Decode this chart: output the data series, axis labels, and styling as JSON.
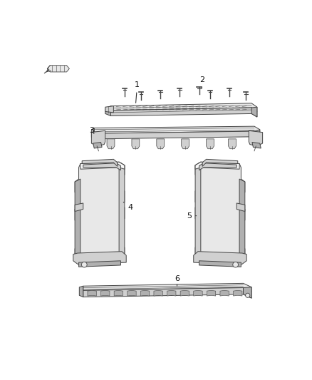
{
  "bg_color": "#ffffff",
  "fig_width": 4.38,
  "fig_height": 5.33,
  "dpi": 100,
  "ec": "#444444",
  "fc_white": "#f8f8f8",
  "fc_light": "#e8e8e8",
  "fc_mid": "#d0d0d0",
  "fc_dark": "#b0b0b0",
  "lw_main": 0.7,
  "lw_thin": 0.4,
  "lw_thick": 1.0
}
